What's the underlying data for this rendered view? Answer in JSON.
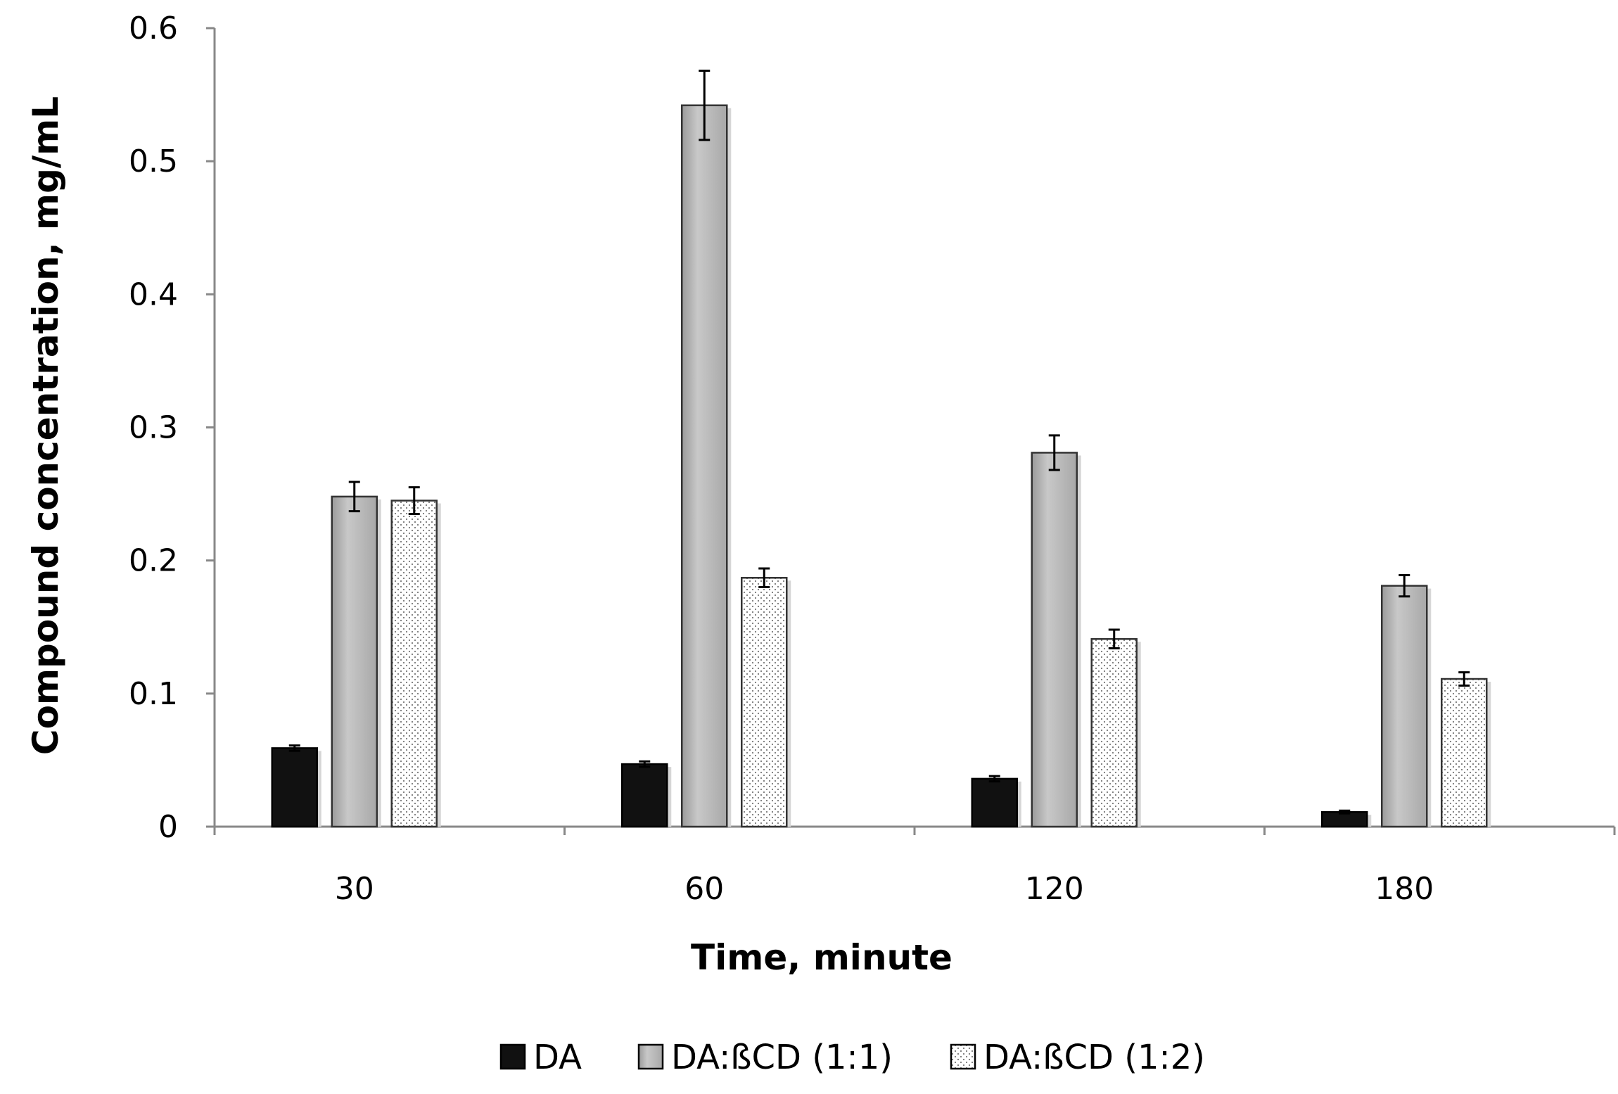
{
  "chart_data": {
    "type": "bar",
    "title": "",
    "xlabel": "Time, minute",
    "ylabel": "Compound concentration, mg/mL",
    "categories": [
      "30",
      "60",
      "120",
      "180"
    ],
    "ylim": [
      0,
      0.6
    ],
    "yticks": [
      0,
      0.1,
      0.2,
      0.3,
      0.4,
      0.5,
      0.6
    ],
    "grid": false,
    "legend_position": "bottom",
    "series": [
      {
        "name": "DA",
        "values": [
          0.059,
          0.047,
          0.036,
          0.011
        ],
        "errors": [
          0.002,
          0.002,
          0.002,
          0.001
        ],
        "fill": "#111111",
        "pattern": "solid"
      },
      {
        "name": "DA:ßCD (1:1)",
        "values": [
          0.248,
          0.542,
          0.281,
          0.181
        ],
        "errors": [
          0.011,
          0.026,
          0.013,
          0.008
        ],
        "fill": "#b3b3b3",
        "pattern": "solid"
      },
      {
        "name": "DA:ßCD (1:2)",
        "values": [
          0.245,
          0.187,
          0.141,
          0.111
        ],
        "errors": [
          0.01,
          0.007,
          0.007,
          0.005
        ],
        "fill": "#ffffff",
        "pattern": "dots"
      }
    ]
  }
}
